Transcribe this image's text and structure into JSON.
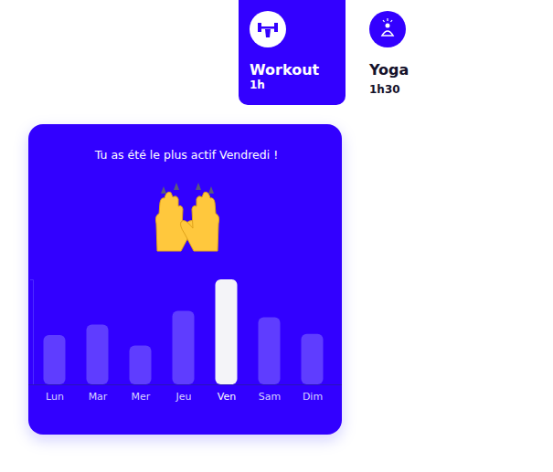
{
  "cards": [
    {
      "title": "Workout",
      "duration": "1h"
    },
    {
      "title": "Yoga",
      "duration": "1h30"
    }
  ],
  "chart_data": {
    "type": "bar",
    "title": "Tu as été le plus actif Vendredi !",
    "categories": [
      "Lun",
      "Mar",
      "Mer",
      "Jeu",
      "Ven",
      "Sam",
      "Dim"
    ],
    "values": [
      47,
      57,
      37,
      70,
      100,
      64,
      48
    ],
    "colors": [
      "#5f3dff",
      "#5f3dff",
      "#5f3dff",
      "#5f3dff",
      "#f4f4f8",
      "#5f3dff",
      "#5f3dff"
    ],
    "ylim": [
      0,
      100
    ],
    "yticks": [
      0,
      100
    ],
    "tick_labels": "x"
  }
}
